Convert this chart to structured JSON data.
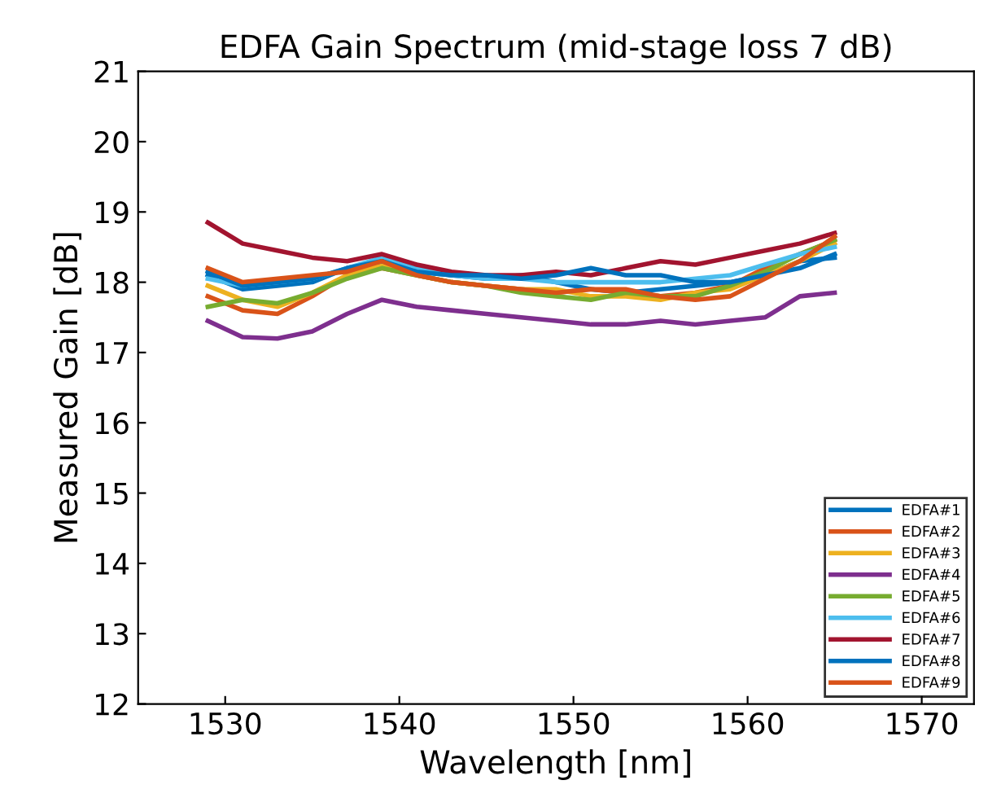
{
  "chart_data": {
    "type": "line",
    "title": "EDFA Gain Spectrum (mid-stage loss 7 dB)",
    "xlabel": "Wavelength [nm]",
    "ylabel": "Measured Gain [dB]",
    "x": [
      1529,
      1531,
      1533,
      1535,
      1537,
      1539,
      1541,
      1543,
      1545,
      1547,
      1549,
      1551,
      1553,
      1555,
      1557,
      1559,
      1561,
      1563,
      1565
    ],
    "series": [
      {
        "name": "EDFA#1",
        "color": "#0072bd",
        "values": [
          18.1,
          17.9,
          17.95,
          18.0,
          18.2,
          18.3,
          18.15,
          18.1,
          18.05,
          18.1,
          18.0,
          17.9,
          17.85,
          17.9,
          17.95,
          18.0,
          18.1,
          18.3,
          18.35
        ]
      },
      {
        "name": "EDFA#2",
        "color": "#d95319",
        "values": [
          17.8,
          17.6,
          17.55,
          17.8,
          18.1,
          18.2,
          18.1,
          18.0,
          17.95,
          17.9,
          17.85,
          17.9,
          17.85,
          17.8,
          17.85,
          17.95,
          18.2,
          18.4,
          18.6
        ]
      },
      {
        "name": "EDFA#3",
        "color": "#edb120",
        "values": [
          17.95,
          17.75,
          17.65,
          17.85,
          18.1,
          18.25,
          18.1,
          18.0,
          17.95,
          17.9,
          17.9,
          17.8,
          17.8,
          17.75,
          17.85,
          17.9,
          18.1,
          18.3,
          18.55
        ]
      },
      {
        "name": "EDFA#4",
        "color": "#7e2f8e",
        "values": [
          17.45,
          17.22,
          17.2,
          17.3,
          17.55,
          17.75,
          17.65,
          17.6,
          17.55,
          17.5,
          17.45,
          17.4,
          17.4,
          17.45,
          17.4,
          17.45,
          17.5,
          17.8,
          17.85
        ]
      },
      {
        "name": "EDFA#5",
        "color": "#77ac30",
        "values": [
          17.65,
          17.75,
          17.7,
          17.85,
          18.05,
          18.2,
          18.1,
          18.0,
          17.95,
          17.85,
          17.8,
          17.75,
          17.85,
          17.8,
          17.8,
          17.95,
          18.15,
          18.4,
          18.6
        ]
      },
      {
        "name": "EDFA#6",
        "color": "#4dbeee",
        "values": [
          18.05,
          17.95,
          18.0,
          18.05,
          18.2,
          18.35,
          18.2,
          18.1,
          18.05,
          18.05,
          18.0,
          18.0,
          18.0,
          18.0,
          18.05,
          18.1,
          18.25,
          18.4,
          18.5
        ]
      },
      {
        "name": "EDFA#7",
        "color": "#a2142f",
        "values": [
          18.85,
          18.55,
          18.45,
          18.35,
          18.3,
          18.4,
          18.25,
          18.15,
          18.1,
          18.1,
          18.15,
          18.1,
          18.2,
          18.3,
          18.25,
          18.35,
          18.45,
          18.55,
          18.7
        ]
      },
      {
        "name": "EDFA#8",
        "color": "#0072bd",
        "values": [
          18.15,
          17.95,
          18.0,
          18.05,
          18.2,
          18.3,
          18.15,
          18.1,
          18.1,
          18.05,
          18.1,
          18.2,
          18.1,
          18.1,
          18.0,
          18.0,
          18.1,
          18.2,
          18.4
        ]
      },
      {
        "name": "EDFA#9",
        "color": "#d95319",
        "values": [
          18.2,
          18.0,
          18.05,
          18.1,
          18.15,
          18.3,
          18.1,
          18.0,
          17.95,
          17.9,
          17.85,
          17.9,
          17.9,
          17.8,
          17.75,
          17.8,
          18.05,
          18.3,
          18.65
        ]
      }
    ],
    "xlim": [
      1525,
      1573
    ],
    "xticks": [
      1530,
      1540,
      1550,
      1560,
      1570
    ],
    "ylim": [
      12,
      21
    ],
    "yticks": [
      12,
      13,
      14,
      15,
      16,
      17,
      18,
      19,
      20,
      21
    ],
    "grid": false,
    "legend": "bottom right",
    "marker": "none",
    "line_style": "solid"
  }
}
